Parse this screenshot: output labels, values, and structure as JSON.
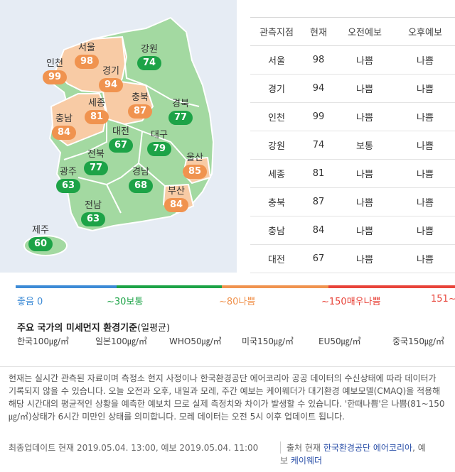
{
  "colors": {
    "good": "#1da347",
    "bad": "#f0934f",
    "region_good_fill": "#a3d9a1",
    "region_bad_fill": "#f8cba5",
    "water": "#e6ecf4",
    "link": "#2a4fa8"
  },
  "map": {
    "regions": [
      {
        "name": "서울",
        "value": "98",
        "status": "bad"
      },
      {
        "name": "인천",
        "value": "99",
        "status": "bad"
      },
      {
        "name": "경기",
        "value": "94",
        "status": "bad"
      },
      {
        "name": "강원",
        "value": "74",
        "status": "good"
      },
      {
        "name": "세종",
        "value": "81",
        "status": "bad"
      },
      {
        "name": "충북",
        "value": "87",
        "status": "bad"
      },
      {
        "name": "충남",
        "value": "84",
        "status": "bad"
      },
      {
        "name": "경북",
        "value": "77",
        "status": "good"
      },
      {
        "name": "대전",
        "value": "67",
        "status": "good"
      },
      {
        "name": "대구",
        "value": "79",
        "status": "good"
      },
      {
        "name": "전북",
        "value": "77",
        "status": "good"
      },
      {
        "name": "울산",
        "value": "85",
        "status": "bad"
      },
      {
        "name": "광주",
        "value": "63",
        "status": "good"
      },
      {
        "name": "경남",
        "value": "68",
        "status": "good"
      },
      {
        "name": "부산",
        "value": "84",
        "status": "bad"
      },
      {
        "name": "전남",
        "value": "63",
        "status": "good"
      },
      {
        "name": "제주",
        "value": "60",
        "status": "good"
      }
    ]
  },
  "table": {
    "headers": [
      "관측지점",
      "현재",
      "오전예보",
      "오후예보"
    ],
    "rows": [
      {
        "site": "서울",
        "current": "98",
        "am": "나쁨",
        "pm": "나쁨"
      },
      {
        "site": "경기",
        "current": "94",
        "am": "나쁨",
        "pm": "나쁨"
      },
      {
        "site": "인천",
        "current": "99",
        "am": "나쁨",
        "pm": "나쁨"
      },
      {
        "site": "강원",
        "current": "74",
        "am": "보통",
        "pm": "나쁨"
      },
      {
        "site": "세종",
        "current": "81",
        "am": "나쁨",
        "pm": "나쁨"
      },
      {
        "site": "충북",
        "current": "87",
        "am": "나쁨",
        "pm": "나쁨"
      },
      {
        "site": "충남",
        "current": "84",
        "am": "나쁨",
        "pm": "나쁨"
      },
      {
        "site": "대전",
        "current": "67",
        "am": "나쁨",
        "pm": "나쁨"
      }
    ]
  },
  "scale": {
    "segments": [
      {
        "label": "좋음 0",
        "color": "#3d8bd6"
      },
      {
        "label": "~30보통",
        "color": "#1da347"
      },
      {
        "label": "~80나쁨",
        "color": "#f0934f"
      },
      {
        "label": "~150매우나쁨",
        "color": "#e8443a"
      },
      {
        "label": "151~",
        "color": "#e8443a"
      }
    ]
  },
  "standards": {
    "title": "주요 국가의 미세먼지 환경기준",
    "title_sub": "(일평균)",
    "items": [
      "한국100㎍/㎥",
      "일본100㎍/㎥",
      "WHO50㎍/㎥",
      "미국150㎍/㎥",
      "EU50㎍/㎥",
      "중국150㎍/㎥"
    ]
  },
  "note": {
    "text": "현재는 실시간 관측된 자료이며 측정소 현지 사정이나 한국환경공단 에어코리아 공공 데이터의 수신상태에 따라 데이터가 기록되지 않을 수 있습니다. 오늘 오전과 오후, 내일과 모레, 주간 예보는 케이웨더가 대기환경 예보모델(CMAQ)을 적용해 해당 시간대의 평균적인 상황을 예측한 예보치 므로 실제 측정치와 차이가 발생할 수 있습니다. '한때나쁨'은 나쁨(81~150㎍/㎥)상태가 6시간 미만인 상태를 의미합니다. 모레 데이터는 오전 5시 이후 업데이트 됩니다.",
    "update": "최종업데이트 현재 2019.05.04. 13:00, 예보 2019.05.04. 11:00",
    "source_prefix": "출처 현재",
    "source_link": "한국환경공단 에어코리아",
    "source_mid": ", 예",
    "source_mid2": "보",
    "source_link2": "케이웨더"
  }
}
